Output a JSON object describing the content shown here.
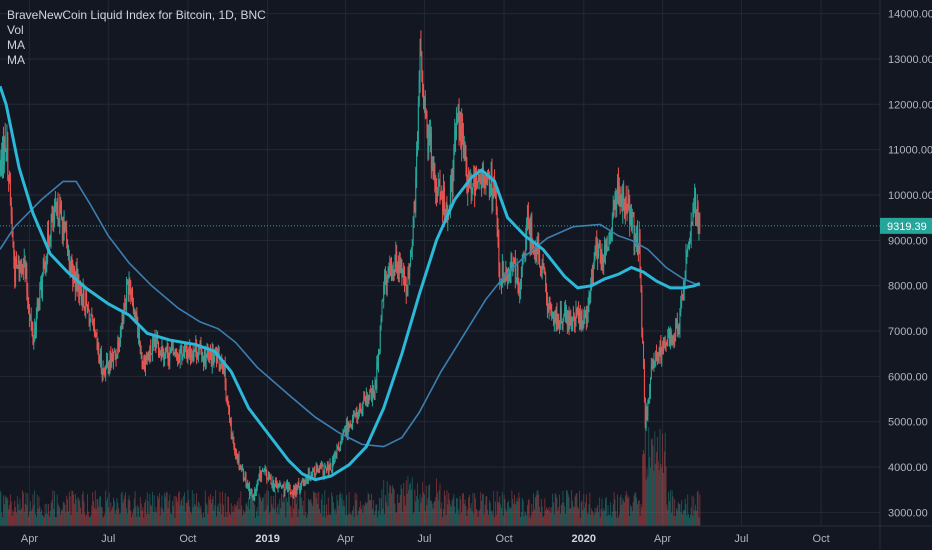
{
  "chart_data": {
    "type": "candlestick",
    "title": "BraveNewCoin Liquid Index for Bitcoin, 1D, BNC",
    "indicators": [
      "Vol",
      "MA",
      "MA"
    ],
    "current_price": 9319.39,
    "current_price_label": "9319.39",
    "ylim": [
      2700,
      14300
    ],
    "y_ticks": [
      3000,
      4000,
      5000,
      6000,
      7000,
      8000,
      9000,
      10000,
      11000,
      12000,
      13000,
      14000
    ],
    "y_tick_labels": [
      "3000.00",
      "4000.00",
      "5000.00",
      "6000.00",
      "7000.00",
      "8000.00",
      "9000.00",
      "10000.00",
      "11000.00",
      "12000.00",
      "13000.00",
      "14000.00"
    ],
    "x_tick_labels": [
      "Apr",
      "Jul",
      "Oct",
      "2019",
      "Apr",
      "Jul",
      "Oct",
      "2020",
      "Apr",
      "Jul",
      "Oct"
    ],
    "x_tick_dates": [
      "2018-04-01",
      "2018-07-01",
      "2018-10-01",
      "2019-01-01",
      "2019-04-01",
      "2019-07-01",
      "2019-10-01",
      "2020-01-01",
      "2020-04-01",
      "2020-07-01",
      "2020-10-01"
    ],
    "x_range": [
      "2018-02-26",
      "2020-12-08"
    ],
    "price_path": [
      [
        "2018-02-26",
        10600
      ],
      [
        "2018-03-05",
        11300
      ],
      [
        "2018-03-15",
        8300
      ],
      [
        "2018-03-25",
        8600
      ],
      [
        "2018-04-05",
        6800
      ],
      [
        "2018-04-25",
        9300
      ],
      [
        "2018-05-05",
        9700
      ],
      [
        "2018-05-20",
        8300
      ],
      [
        "2018-06-05",
        7600
      ],
      [
        "2018-06-25",
        6100
      ],
      [
        "2018-07-10",
        6500
      ],
      [
        "2018-07-25",
        8200
      ],
      [
        "2018-08-10",
        6300
      ],
      [
        "2018-08-25",
        6700
      ],
      [
        "2018-09-10",
        6500
      ],
      [
        "2018-09-25",
        6500
      ],
      [
        "2018-10-10",
        6600
      ],
      [
        "2018-10-25",
        6400
      ],
      [
        "2018-11-10",
        6400
      ],
      [
        "2018-11-20",
        4700
      ],
      [
        "2018-12-01",
        4000
      ],
      [
        "2018-12-15",
        3300
      ],
      [
        "2018-12-25",
        3900
      ],
      [
        "2019-01-10",
        3600
      ],
      [
        "2019-02-01",
        3450
      ],
      [
        "2019-02-20",
        3900
      ],
      [
        "2019-03-15",
        3950
      ],
      [
        "2019-04-03",
        4900
      ],
      [
        "2019-04-20",
        5300
      ],
      [
        "2019-05-05",
        5700
      ],
      [
        "2019-05-15",
        7900
      ],
      [
        "2019-05-30",
        8600
      ],
      [
        "2019-06-10",
        7900
      ],
      [
        "2019-06-20",
        9800
      ],
      [
        "2019-06-26",
        12900
      ],
      [
        "2019-07-05",
        11300
      ],
      [
        "2019-07-15",
        10200
      ],
      [
        "2019-07-30",
        9600
      ],
      [
        "2019-08-08",
        11900
      ],
      [
        "2019-08-20",
        10200
      ],
      [
        "2019-09-05",
        10500
      ],
      [
        "2019-09-20",
        10100
      ],
      [
        "2019-09-26",
        8200
      ],
      [
        "2019-10-10",
        8500
      ],
      [
        "2019-10-20",
        8000
      ],
      [
        "2019-10-27",
        9300
      ],
      [
        "2019-11-10",
        8800
      ],
      [
        "2019-11-25",
        7200
      ],
      [
        "2019-12-10",
        7300
      ],
      [
        "2019-12-20",
        7200
      ],
      [
        "2020-01-05",
        7400
      ],
      [
        "2020-01-15",
        8800
      ],
      [
        "2020-01-25",
        8600
      ],
      [
        "2020-02-10",
        10100
      ],
      [
        "2020-02-20",
        9700
      ],
      [
        "2020-03-05",
        8900
      ],
      [
        "2020-03-12",
        5000
      ],
      [
        "2020-03-20",
        6200
      ],
      [
        "2020-04-05",
        6800
      ],
      [
        "2020-04-20",
        7100
      ],
      [
        "2020-04-30",
        8800
      ],
      [
        "2020-05-08",
        9800
      ],
      [
        "2020-05-14",
        9319.39
      ]
    ],
    "ma_fast": [
      [
        "2018-02-26",
        12400
      ],
      [
        "2018-03-05",
        12000
      ],
      [
        "2018-03-20",
        10600
      ],
      [
        "2018-04-05",
        9600
      ],
      [
        "2018-04-25",
        8700
      ],
      [
        "2018-05-15",
        8300
      ],
      [
        "2018-06-05",
        7950
      ],
      [
        "2018-07-01",
        7600
      ],
      [
        "2018-07-25",
        7350
      ],
      [
        "2018-08-15",
        6950
      ],
      [
        "2018-09-10",
        6800
      ],
      [
        "2018-10-10",
        6700
      ],
      [
        "2018-11-01",
        6550
      ],
      [
        "2018-11-20",
        6100
      ],
      [
        "2018-12-10",
        5300
      ],
      [
        "2019-01-01",
        4750
      ],
      [
        "2019-01-25",
        4150
      ],
      [
        "2019-02-10",
        3850
      ],
      [
        "2019-02-25",
        3720
      ],
      [
        "2019-03-15",
        3800
      ],
      [
        "2019-04-05",
        4050
      ],
      [
        "2019-04-25",
        4450
      ],
      [
        "2019-05-15",
        5300
      ],
      [
        "2019-06-05",
        6500
      ],
      [
        "2019-06-25",
        7800
      ],
      [
        "2019-07-15",
        9000
      ],
      [
        "2019-08-05",
        9900
      ],
      [
        "2019-08-25",
        10400
      ],
      [
        "2019-09-05",
        10550
      ],
      [
        "2019-09-20",
        10300
      ],
      [
        "2019-10-05",
        9500
      ],
      [
        "2019-10-25",
        9100
      ],
      [
        "2019-11-15",
        8800
      ],
      [
        "2019-12-10",
        8200
      ],
      [
        "2019-12-25",
        7950
      ],
      [
        "2020-01-10",
        8000
      ],
      [
        "2020-01-25",
        8150
      ],
      [
        "2020-02-10",
        8250
      ],
      [
        "2020-02-25",
        8400
      ],
      [
        "2020-03-10",
        8300
      ],
      [
        "2020-03-25",
        8100
      ],
      [
        "2020-04-10",
        7950
      ],
      [
        "2020-04-25",
        7950
      ],
      [
        "2020-05-08",
        8000
      ],
      [
        "2020-05-14",
        8050
      ]
    ],
    "ma_slow": [
      [
        "2018-02-26",
        8800
      ],
      [
        "2018-03-15",
        9300
      ],
      [
        "2018-04-15",
        9900
      ],
      [
        "2018-05-10",
        10300
      ],
      [
        "2018-05-25",
        10300
      ],
      [
        "2018-06-10",
        9800
      ],
      [
        "2018-07-01",
        9100
      ],
      [
        "2018-07-25",
        8500
      ],
      [
        "2018-08-20",
        8000
      ],
      [
        "2018-09-20",
        7500
      ],
      [
        "2018-10-15",
        7200
      ],
      [
        "2018-11-05",
        7050
      ],
      [
        "2018-11-25",
        6750
      ],
      [
        "2018-12-20",
        6200
      ],
      [
        "2019-01-25",
        5600
      ],
      [
        "2019-02-25",
        5100
      ],
      [
        "2019-03-25",
        4750
      ],
      [
        "2019-04-20",
        4500
      ],
      [
        "2019-05-15",
        4450
      ],
      [
        "2019-06-05",
        4650
      ],
      [
        "2019-06-25",
        5200
      ],
      [
        "2019-07-20",
        6100
      ],
      [
        "2019-08-15",
        6900
      ],
      [
        "2019-09-10",
        7700
      ],
      [
        "2019-10-01",
        8200
      ],
      [
        "2019-10-25",
        8650
      ],
      [
        "2019-11-20",
        9050
      ],
      [
        "2019-12-20",
        9300
      ],
      [
        "2020-01-20",
        9350
      ],
      [
        "2020-02-10",
        9100
      ],
      [
        "2020-02-25",
        9000
      ],
      [
        "2020-03-15",
        8800
      ],
      [
        "2020-04-05",
        8400
      ],
      [
        "2020-04-25",
        8150
      ],
      [
        "2020-05-14",
        8000
      ]
    ],
    "volume_note": "daily volume bars along bottom; spike in Mar 2020"
  },
  "colors": {
    "background": "#131722",
    "grid": "#242833",
    "axis_text": "#b2b5be",
    "up": "#26a69a",
    "down": "#ef5350",
    "ma_fast": "#2bb8d9",
    "ma_slow": "#3d7eb0",
    "price_line": "#26a69a"
  }
}
